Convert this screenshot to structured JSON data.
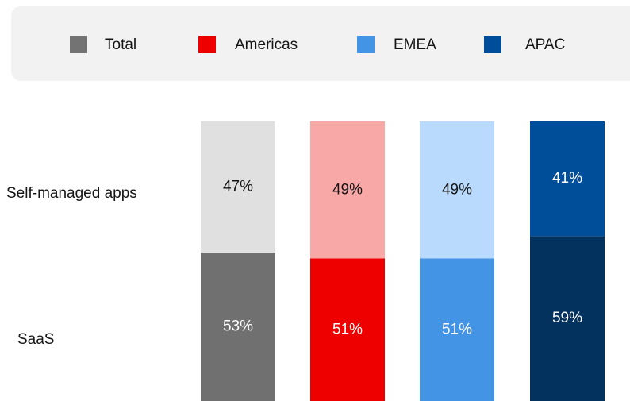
{
  "chart_data": {
    "type": "stacked_bar",
    "categories": [
      "Total",
      "Americas",
      "EMEA",
      "APAC"
    ],
    "category_colors": [
      "#737373",
      "#ee0000",
      "#4394e5",
      "#004d99"
    ],
    "series": [
      {
        "name": "SaaS",
        "colors": [
          "#707070",
          "#ee0000",
          "#4394e5",
          "#03325f"
        ],
        "values": [
          53,
          51,
          51,
          59
        ],
        "value_labels": [
          "53%",
          "51%",
          "51%",
          "59%"
        ]
      },
      {
        "name": "Self-managed apps",
        "colors": [
          "#e0e0e0",
          "#f9a8a8",
          "#b9dafc",
          "#004d99"
        ],
        "values": [
          47,
          49,
          49,
          41
        ],
        "value_labels": [
          "47%",
          "49%",
          "49%",
          "41%"
        ]
      }
    ],
    "ylim": [
      0,
      100
    ],
    "legend": "top"
  }
}
